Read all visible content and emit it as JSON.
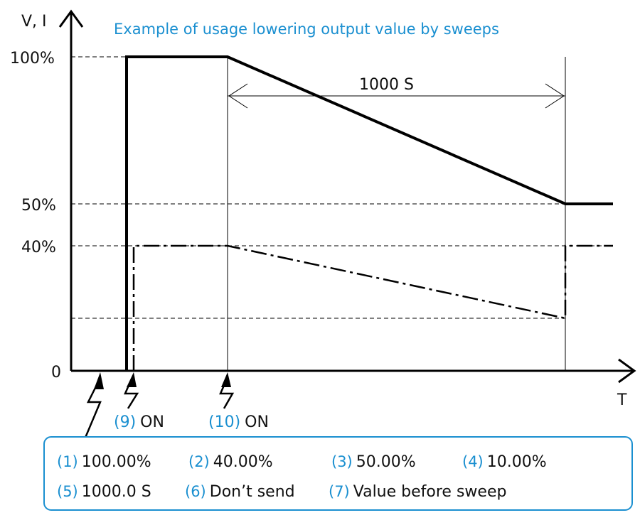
{
  "title": "Example of usage lowering output value by sweeps",
  "axes": {
    "y_label": "V, I",
    "x_label": "T",
    "y_ticks": [
      "100%",
      "50%",
      "40%",
      "0"
    ]
  },
  "duration_label": "1000 S",
  "triggers": [
    {
      "num": "(9)",
      "text": "ON"
    },
    {
      "num": "(10)",
      "text": "ON"
    }
  ],
  "settings": [
    {
      "num": "(1)",
      "text": "100.00%"
    },
    {
      "num": "(2)",
      "text": "40.00%"
    },
    {
      "num": "(3)",
      "text": "50.00%"
    },
    {
      "num": "(4)",
      "text": "10.00%"
    },
    {
      "num": "(5)",
      "text": "1000.0 S"
    },
    {
      "num": "(6)",
      "text": "Don’t send"
    },
    {
      "num": "(7)",
      "text": "Value before sweep"
    }
  ],
  "colors": {
    "accent": "#1a8fd0",
    "line": "#000000"
  }
}
